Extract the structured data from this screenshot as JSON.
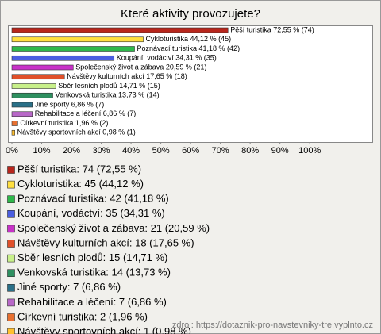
{
  "chart_data": {
    "type": "bar",
    "orientation": "horizontal",
    "title": "Které aktivity provozujete?",
    "categories": [
      "Pěší turistika",
      "Cykloturistika",
      "Poznávací turistika",
      "Koupání, vodáctví",
      "Společenský život a zábava",
      "Návštěvy kulturních akcí",
      "Sběr lesních plodů",
      "Venkovská turistika",
      "Jiné sporty",
      "Rehabilitace a léčení",
      "Církevní turistika",
      "Návštěvy sportovních akcí"
    ],
    "values": [
      72.55,
      44.12,
      41.18,
      34.31,
      20.59,
      17.65,
      14.71,
      13.73,
      6.86,
      6.86,
      1.96,
      0.98
    ],
    "value_labels": [
      "Pěší turistika 72,55 % (74)",
      "Cykloturistika 44,12 % (45)",
      "Poznávací turistika 41,18 % (42)",
      "Koupání, vodáctví 34,31 % (35)",
      "Společenský život a zábava 20,59 % (21)",
      "Návštěvy kulturních akcí 17,65 % (18)",
      "Sběr lesních plodů 14,71 % (15)",
      "Venkovská turistika 13,73 % (14)",
      "Jiné sporty 6,86 % (7)",
      "Rehabilitace a léčení 6,86 % (7)",
      "Církevní turistika 1,96 % (2)",
      "Návštěvy sportovních akcí 0,98 % (1)"
    ],
    "colors": [
      "#b8261c",
      "#ffdf40",
      "#2eb84a",
      "#4a5ee0",
      "#c832c8",
      "#e0502a",
      "#c8f08a",
      "#2e9060",
      "#2a7088",
      "#b868c8",
      "#e87030",
      "#ffc030"
    ],
    "legend": [
      "Pěší turistika: 74 (72,55 %)",
      "Cykloturistika: 45 (44,12 %)",
      "Poznávací turistika: 42 (41,18 %)",
      "Koupání, vodáctví: 35 (34,31 %)",
      "Společenský život a zábava: 21 (20,59 %)",
      "Návštěvy kulturních akcí: 18 (17,65 %)",
      "Sběr lesních plodů: 15 (14,71 %)",
      "Venkovská turistika: 14 (13,73 %)",
      "Jiné sporty: 7 (6,86 %)",
      "Rehabilitace a léčení: 7 (6,86 %)",
      "Církevní turistika: 2 (1,96 %)",
      "Návštěvy sportovních akcí: 1 (0,98 %)"
    ],
    "xlim": [
      0,
      121
    ],
    "xticks": [
      {
        "value": 0,
        "label": "0%"
      },
      {
        "value": 10,
        "label": "10%"
      },
      {
        "value": 20,
        "label": "20%"
      },
      {
        "value": 30,
        "label": "30%"
      },
      {
        "value": 40,
        "label": "40%"
      },
      {
        "value": 50,
        "label": "50%"
      },
      {
        "value": 60,
        "label": "60%"
      },
      {
        "value": 70,
        "label": "70%"
      },
      {
        "value": 80,
        "label": "80%"
      },
      {
        "value": 90,
        "label": "90%"
      },
      {
        "value": 100,
        "label": "100%"
      }
    ],
    "source": "zdroj: https://dotaznik-pro-navstevniky-tre.vyplnto.cz"
  }
}
